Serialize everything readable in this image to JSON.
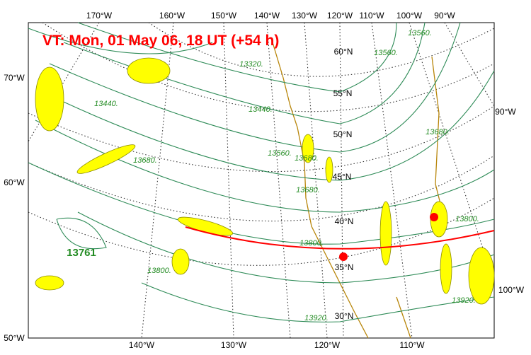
{
  "title": "VT:  Mon, 01 May 06, 18 UT (+54 h)",
  "top_lon_labels": [
    "170°W",
    "160°W",
    "150°W",
    "140°W",
    "130°W",
    "120°W",
    "110°W",
    "100°W",
    "90°W"
  ],
  "bottom_lon_labels": [
    "140°W",
    "130°W",
    "120°W",
    "110°W"
  ],
  "left_labels": [
    "70°W",
    "60°W",
    "50°W"
  ],
  "right_labels": [
    "90°W",
    "100°W"
  ],
  "lat_labels": [
    "60°N",
    "55°N",
    "50°N",
    "45°N",
    "40°N",
    "35°N",
    "30°N"
  ],
  "contour_labels": [
    "13320.",
    "13440.",
    "13560.",
    "13680.",
    "13800.",
    "13800.",
    "13800.",
    "13920.",
    "13920.",
    "13560.",
    "13680.",
    "13440.",
    "13560.",
    "13680.",
    "13680."
  ],
  "high_label": "13761"
}
